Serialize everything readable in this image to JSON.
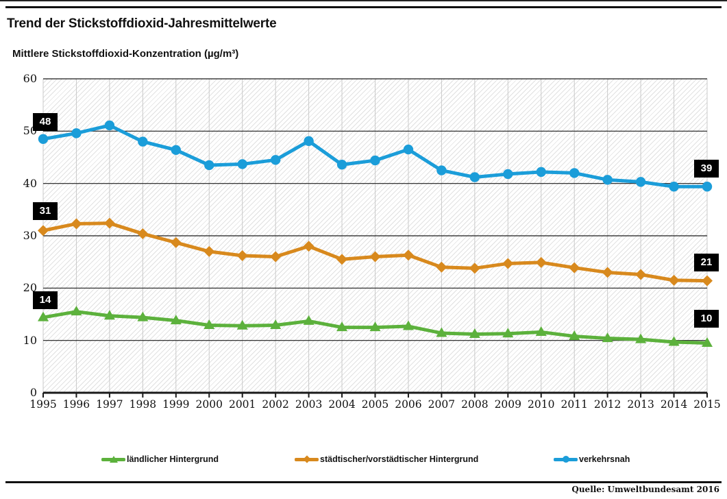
{
  "page": {
    "source": "Quelle: Umweltbundesamt 2016"
  },
  "chart_data": {
    "type": "line",
    "title": "Trend der Stickstoffdioxid-Jahresmittelwerte",
    "ylabel": "Mittlere Stickstoffdioxid-Konzentration (µg/m³)",
    "xlabel": "",
    "ylim": [
      0,
      60
    ],
    "yticks": [
      0,
      10,
      20,
      30,
      40,
      50,
      60
    ],
    "grid": "horizontal dark lines, light vertical year lines, hatched plot background",
    "legend_position": "bottom",
    "x": [
      "1995",
      "1996",
      "1997",
      "1998",
      "1999",
      "2000",
      "2001",
      "2002",
      "2003",
      "2004",
      "2005",
      "2006",
      "2007",
      "2008",
      "2009",
      "2010",
      "2011",
      "2012",
      "2013",
      "2014",
      "2015"
    ],
    "series": [
      {
        "name": "ländlicher Hintergrund",
        "marker": "triangle",
        "color": "#5cb13c",
        "start_label": "14",
        "end_label": "10",
        "values": [
          14.4,
          15.5,
          14.7,
          14.4,
          13.8,
          12.9,
          12.8,
          12.9,
          13.7,
          12.5,
          12.5,
          12.7,
          11.4,
          11.2,
          11.3,
          11.6,
          10.8,
          10.4,
          10.2,
          9.7,
          9.5
        ]
      },
      {
        "name": "städtischer/vorstädtischer Hintergrund",
        "marker": "diamond",
        "color": "#d8891d",
        "start_label": "31",
        "end_label": "21",
        "values": [
          31.0,
          32.3,
          32.4,
          30.4,
          28.7,
          27.0,
          26.2,
          26.0,
          28.0,
          25.5,
          26.0,
          26.3,
          24.0,
          23.8,
          24.7,
          24.9,
          23.9,
          23.0,
          22.6,
          21.5,
          21.4
        ]
      },
      {
        "name": "verkehrsnah",
        "marker": "circle",
        "color": "#1b9dd9",
        "start_label": "48",
        "end_label": "39",
        "values": [
          48.5,
          49.6,
          51.1,
          48.0,
          46.4,
          43.5,
          43.7,
          44.5,
          48.1,
          43.6,
          44.4,
          46.5,
          42.5,
          41.2,
          41.8,
          42.2,
          42.0,
          40.7,
          40.3,
          39.4,
          39.4
        ]
      }
    ]
  }
}
